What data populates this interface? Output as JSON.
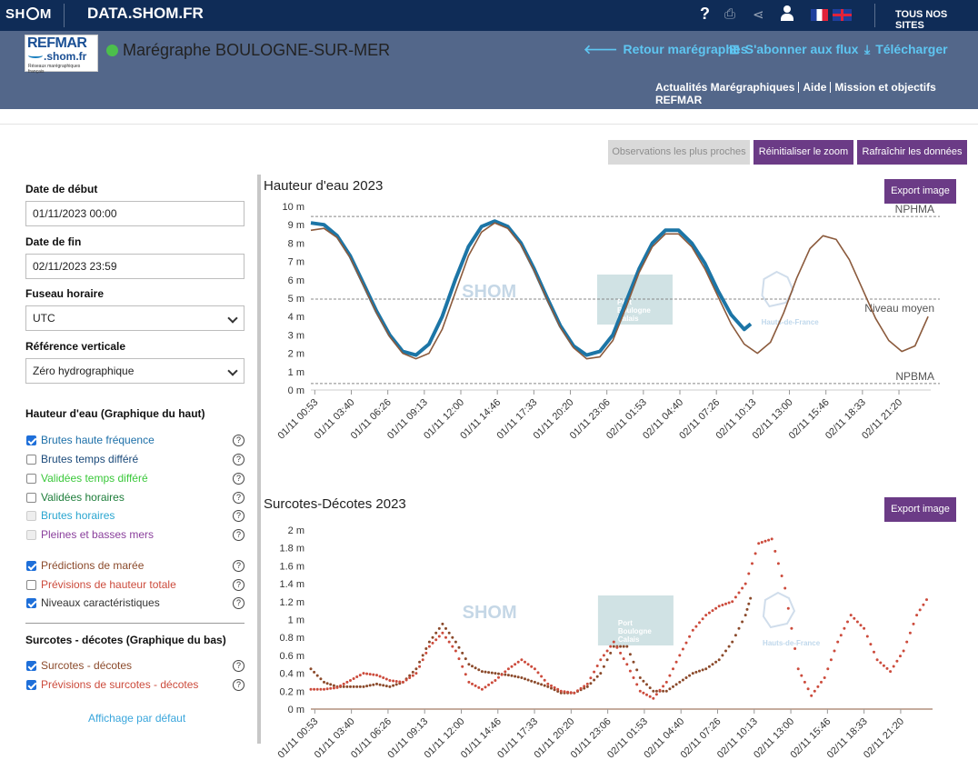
{
  "topbar": {
    "logo_left": "SH",
    "logo_right": "M",
    "site": "DATA.SHOM.FR",
    "help": "?",
    "all_sites": "TOUS NOS SITES"
  },
  "header": {
    "refmar_logo": {
      "line1": "REFMAR",
      "line2": ".shom.fr",
      "line3": "Réseaux marégraphiques français"
    },
    "station_title": "Marégraphe BOULOGNE-SUR-MER",
    "links": [
      "Retour marégraphes",
      "S'abonner aux flux",
      "Télécharger"
    ],
    "sublinks": [
      "Actualités Marégraphiques",
      "Aide",
      "Mission et objectifs REFMAR"
    ]
  },
  "buttons": {
    "nearest": "Observations les plus proches",
    "reset_zoom": "Réinitialiser le zoom",
    "refresh": "Rafraîchir les données",
    "export": "Export image"
  },
  "sidebar": {
    "start_label": "Date de début",
    "start_value": "01/11/2023 00:00",
    "end_label": "Date de fin",
    "end_value": "02/11/2023 23:59",
    "tz_label": "Fuseau horaire",
    "tz_value": "UTC",
    "vref_label": "Référence verticale",
    "vref_value": "Zéro hydrographique",
    "water_section": "Hauteur d'eau (Graphique du haut)",
    "water_items": [
      {
        "label": "Brutes haute fréquence",
        "checked": true,
        "color": "#1c6fa8"
      },
      {
        "label": "Brutes temps différé",
        "checked": false,
        "color": "#1b4a7a"
      },
      {
        "label": "Validées temps différé",
        "checked": false,
        "color": "#3ac83a"
      },
      {
        "label": "Validées horaires",
        "checked": false,
        "color": "#1d7d3a"
      },
      {
        "label": "Brutes horaires",
        "checked": false,
        "color": "#2aa6d0"
      },
      {
        "label": "Pleines et basses mers",
        "checked": false,
        "color": "#8a3f9c"
      },
      {
        "label": "Prédictions de marée",
        "checked": true,
        "color": "#8b4a2b"
      },
      {
        "label": "Prévisions de hauteur totale",
        "checked": false,
        "color": "#cc4b3c"
      },
      {
        "label": "Niveaux caractéristiques",
        "checked": true,
        "color": "#333333"
      }
    ],
    "surge_section": "Surcotes - décotes (Graphique du bas)",
    "surge_items": [
      {
        "label": "Surcotes - décotes",
        "checked": true,
        "color": "#8b4a2b"
      },
      {
        "label": "Prévisions de surcotes - décotes",
        "checked": true,
        "color": "#cc4b3c"
      }
    ],
    "default_view": "Affichage par défaut"
  },
  "watermarks": {
    "shom": "SHOM",
    "port": "Port\nBoulogne\nCalais",
    "region": "Hauts-de-France"
  },
  "chart_data": [
    {
      "type": "line",
      "title": "Hauteur d'eau 2023",
      "ylim": [
        0,
        10
      ],
      "yticks": [
        "0 m",
        "1 m",
        "2 m",
        "3 m",
        "4 m",
        "5 m",
        "6 m",
        "7 m",
        "8 m",
        "9 m",
        "10 m"
      ],
      "xlim": [
        0,
        47.2
      ],
      "xtick_labels": [
        "01/11 00:53",
        "01/11 03:40",
        "01/11 06:26",
        "01/11 09:13",
        "01/11 12:00",
        "01/11 14:46",
        "01/11 17:33",
        "01/11 20:20",
        "01/11 23:06",
        "02/11 01:53",
        "02/11 04:40",
        "02/11 07:26",
        "02/11 10:13",
        "02/11 13:00",
        "02/11 15:46",
        "02/11 18:33",
        "02/11 21:20"
      ],
      "reference_lines": [
        {
          "name": "NPHMA",
          "value": 9.45
        },
        {
          "name": "Niveau moyen",
          "value": 4.95
        },
        {
          "name": "NPBMA",
          "value": 0.35
        }
      ],
      "series": [
        {
          "name": "Brutes haute fréquence",
          "color": "#1c75a6",
          "x": [
            0,
            1,
            2,
            3,
            4,
            5,
            6,
            7,
            8,
            9,
            10,
            11,
            12,
            13,
            14,
            15,
            16,
            17,
            18,
            19,
            20,
            21,
            22,
            23,
            24,
            25,
            26,
            27,
            28,
            29,
            30,
            31,
            32,
            33,
            33.5
          ],
          "y": [
            9.1,
            9.0,
            8.4,
            7.3,
            5.8,
            4.3,
            3.0,
            2.1,
            1.9,
            2.5,
            4.0,
            6.0,
            7.8,
            8.9,
            9.2,
            8.9,
            8.0,
            6.6,
            5.0,
            3.5,
            2.4,
            1.9,
            2.1,
            3.0,
            4.8,
            6.6,
            8.0,
            8.7,
            8.7,
            8.0,
            6.9,
            5.4,
            4.1,
            3.3,
            3.6
          ]
        },
        {
          "name": "Prédictions de marée",
          "color": "#8b5a3c",
          "x": [
            0,
            1,
            2,
            3,
            4,
            5,
            6,
            7,
            8,
            9,
            10,
            11,
            12,
            13,
            14,
            15,
            16,
            17,
            18,
            19,
            20,
            21,
            22,
            23,
            24,
            25,
            26,
            27,
            28,
            29,
            30,
            31,
            32,
            33,
            34,
            35,
            36,
            37,
            38,
            39,
            40,
            41,
            42,
            43,
            44,
            45,
            46,
            47
          ],
          "y": [
            8.7,
            8.8,
            8.3,
            7.2,
            5.7,
            4.2,
            2.9,
            2.0,
            1.7,
            2.0,
            3.3,
            5.3,
            7.3,
            8.6,
            9.1,
            8.8,
            7.9,
            6.5,
            4.9,
            3.4,
            2.3,
            1.7,
            1.8,
            2.7,
            4.5,
            6.4,
            7.8,
            8.5,
            8.5,
            7.8,
            6.6,
            5.1,
            3.6,
            2.5,
            2.0,
            2.6,
            4.2,
            6.1,
            7.7,
            8.4,
            8.2,
            7.1,
            5.5,
            3.9,
            2.7,
            2.1,
            2.4,
            4.0
          ]
        }
      ]
    },
    {
      "type": "scatter",
      "title": "Surcotes-Décotes 2023",
      "ylim": [
        0,
        2
      ],
      "yticks": [
        "0 m",
        "0.2 m",
        "0.4 m",
        "0.6 m",
        "0.8 m",
        "1 m",
        "1.2 m",
        "1.4 m",
        "1.6 m",
        "1.8 m",
        "2 m"
      ],
      "xlim": [
        0,
        47.2
      ],
      "xtick_labels": [
        "01/11 00:53",
        "01/11 03:40",
        "01/11 06:26",
        "01/11 09:13",
        "01/11 12:00",
        "01/11 14:46",
        "01/11 17:33",
        "01/11 20:20",
        "01/11 23:06",
        "02/11 01:53",
        "02/11 04:40",
        "02/11 07:26",
        "02/11 10:13",
        "02/11 13:00",
        "02/11 15:46",
        "02/11 18:33",
        "02/11 21:20"
      ],
      "series": [
        {
          "name": "Surcotes - décotes",
          "color": "#8b4a2b",
          "x": [
            0,
            1,
            2,
            3,
            4,
            5,
            6,
            7,
            8,
            9,
            10,
            11,
            12,
            13,
            14,
            15,
            16,
            17,
            18,
            19,
            20,
            21,
            22,
            23,
            24,
            25,
            26,
            27,
            28,
            29,
            30,
            31,
            32,
            33,
            33.5
          ],
          "y": [
            0.45,
            0.3,
            0.25,
            0.25,
            0.25,
            0.28,
            0.25,
            0.3,
            0.45,
            0.75,
            0.95,
            0.75,
            0.5,
            0.42,
            0.4,
            0.38,
            0.35,
            0.3,
            0.25,
            0.18,
            0.18,
            0.25,
            0.4,
            0.7,
            0.7,
            0.35,
            0.2,
            0.2,
            0.3,
            0.4,
            0.45,
            0.55,
            0.75,
            1.05,
            1.3
          ]
        },
        {
          "name": "Prévisions de surcotes - décotes",
          "color": "#cc4b3c",
          "x": [
            0,
            1,
            2,
            3,
            4,
            5,
            6,
            7,
            8,
            9,
            10,
            11,
            12,
            13,
            14,
            15,
            16,
            17,
            18,
            19,
            20,
            21,
            22,
            23,
            24,
            25,
            26,
            27,
            28,
            29,
            30,
            31,
            32,
            33,
            34,
            35,
            36,
            37,
            38,
            39,
            40,
            41,
            42,
            43,
            44,
            45,
            46,
            47
          ],
          "y": [
            0.22,
            0.22,
            0.24,
            0.32,
            0.4,
            0.38,
            0.32,
            0.3,
            0.4,
            0.7,
            0.85,
            0.65,
            0.3,
            0.22,
            0.32,
            0.45,
            0.55,
            0.45,
            0.28,
            0.2,
            0.18,
            0.28,
            0.55,
            0.75,
            0.5,
            0.2,
            0.12,
            0.3,
            0.6,
            0.88,
            1.05,
            1.15,
            1.2,
            1.4,
            1.85,
            1.9,
            1.35,
            0.45,
            0.15,
            0.35,
            0.75,
            1.05,
            0.9,
            0.55,
            0.42,
            0.65,
            1.05,
            1.28
          ]
        }
      ]
    }
  ]
}
